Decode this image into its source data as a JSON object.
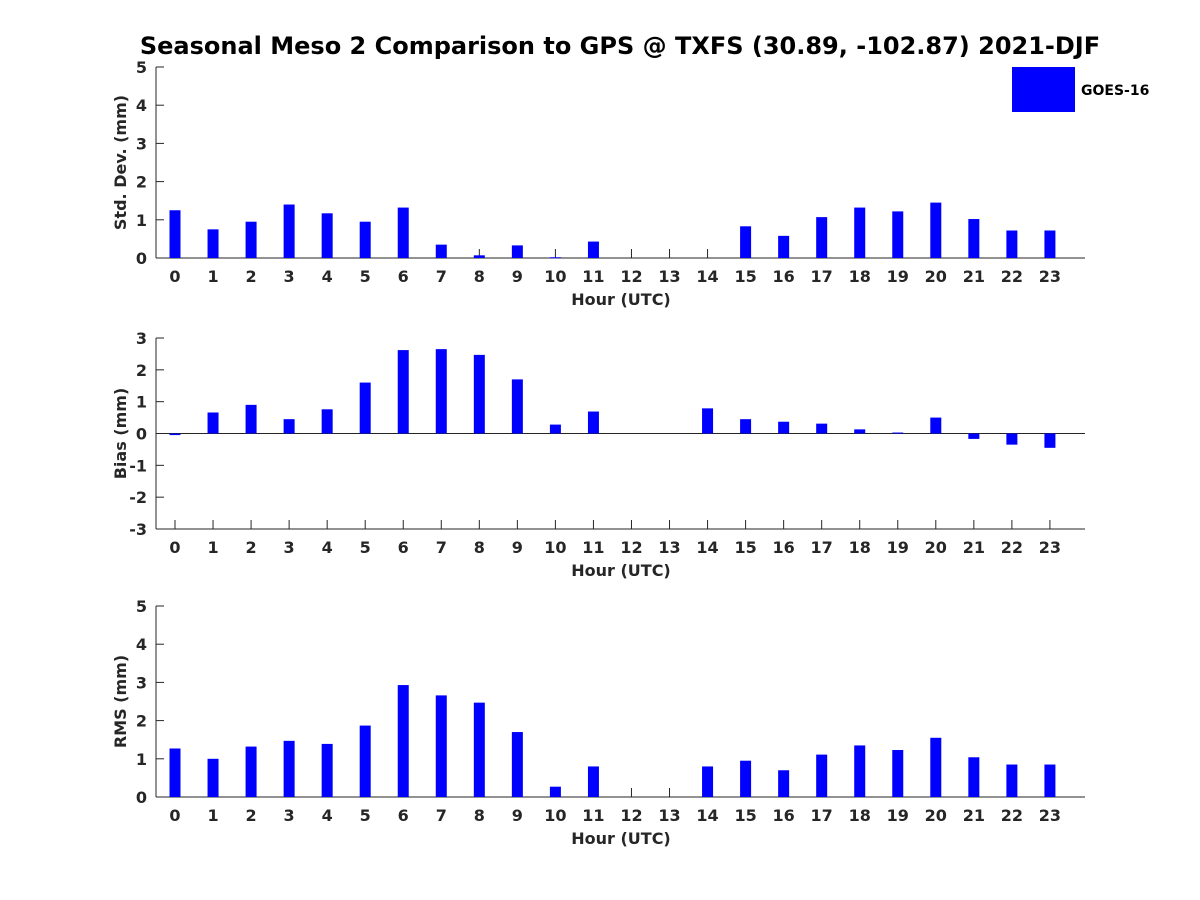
{
  "chart_data": {
    "type": "bar",
    "title": "Seasonal Meso 2 Comparison to GPS @ TXFS (30.89, -102.87) 2021-DJF",
    "legend": {
      "entries": [
        "GOES-16"
      ],
      "placement": "top-right",
      "color": "#0000ff"
    },
    "bar_color": "#0000ff",
    "categories": [
      "0",
      "1",
      "2",
      "3",
      "4",
      "5",
      "6",
      "7",
      "8",
      "9",
      "10",
      "11",
      "12",
      "13",
      "14",
      "15",
      "16",
      "17",
      "18",
      "19",
      "20",
      "21",
      "22",
      "23"
    ],
    "panels": [
      {
        "id": "std",
        "ylabel": "Std. Dev. (mm)",
        "xlabel": "Hour (UTC)",
        "ylim": [
          0,
          5
        ],
        "yticks": [
          "0",
          "1",
          "2",
          "3",
          "4",
          "5"
        ],
        "values": [
          1.25,
          0.75,
          0.95,
          1.4,
          1.17,
          0.95,
          1.32,
          0.35,
          0.07,
          0.33,
          0.02,
          0.43,
          null,
          null,
          null,
          0.83,
          0.58,
          1.07,
          1.32,
          1.22,
          1.45,
          1.02,
          0.72,
          0.72
        ]
      },
      {
        "id": "bias",
        "ylabel": "Bias (mm)",
        "xlabel": "Hour (UTC)",
        "ylim": [
          -3,
          3
        ],
        "yticks": [
          "-3",
          "-2",
          "-1",
          "0",
          "1",
          "2",
          "3"
        ],
        "values": [
          -0.05,
          0.66,
          0.9,
          0.45,
          0.76,
          1.6,
          2.62,
          2.65,
          2.47,
          1.7,
          0.28,
          0.69,
          null,
          null,
          0.79,
          0.45,
          0.37,
          0.31,
          0.13,
          0.03,
          0.5,
          -0.17,
          -0.35,
          -0.45
        ]
      },
      {
        "id": "rms",
        "ylabel": "RMS (mm)",
        "xlabel": "Hour (UTC)",
        "ylim": [
          0,
          5
        ],
        "yticks": [
          "0",
          "1",
          "2",
          "3",
          "4",
          "5"
        ],
        "values": [
          1.27,
          1.0,
          1.32,
          1.47,
          1.39,
          1.87,
          2.93,
          2.66,
          2.47,
          1.7,
          0.27,
          0.8,
          null,
          null,
          0.8,
          0.95,
          0.7,
          1.11,
          1.35,
          1.23,
          1.55,
          1.04,
          0.85,
          0.85
        ]
      }
    ]
  }
}
